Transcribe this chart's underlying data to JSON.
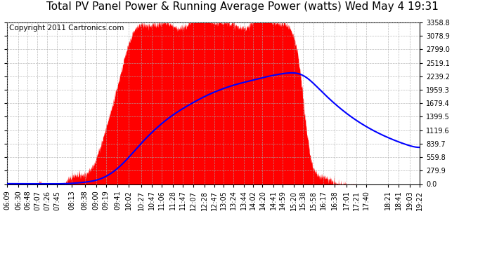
{
  "title": "Total PV Panel Power & Running Average Power (watts) Wed May 4 19:31",
  "copyright": "Copyright 2011 Cartronics.com",
  "background_color": "#ffffff",
  "plot_bg_color": "#ffffff",
  "fill_color": "#ff0000",
  "line_color": "#0000ff",
  "y_ticks": [
    0.0,
    279.9,
    559.8,
    839.7,
    1119.6,
    1399.5,
    1679.4,
    1959.3,
    2239.2,
    2519.1,
    2799.0,
    3078.9,
    3358.8
  ],
  "x_labels": [
    "06:09",
    "06:30",
    "06:48",
    "07:07",
    "07:26",
    "07:45",
    "08:13",
    "08:38",
    "09:00",
    "09:19",
    "09:41",
    "10:02",
    "10:27",
    "10:47",
    "11:06",
    "11:28",
    "11:47",
    "12:07",
    "12:28",
    "12:47",
    "13:05",
    "13:24",
    "13:44",
    "14:02",
    "14:20",
    "14:41",
    "14:59",
    "15:20",
    "15:38",
    "15:58",
    "16:17",
    "16:38",
    "17:01",
    "17:21",
    "17:40",
    "18:21",
    "18:41",
    "19:03",
    "19:22"
  ],
  "grid_color": "#aaaaaa",
  "title_fontsize": 11,
  "tick_fontsize": 7,
  "copyright_fontsize": 7.5,
  "ymax": 3358.8
}
